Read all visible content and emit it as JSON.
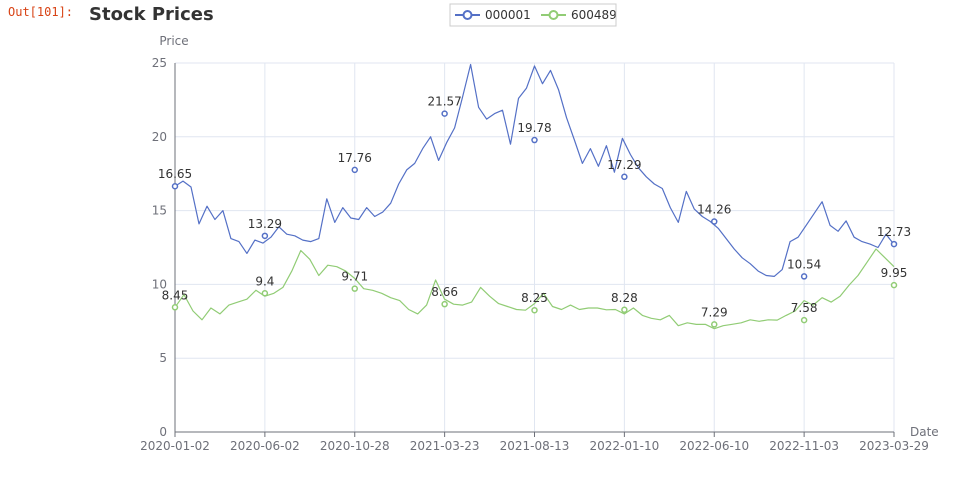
{
  "cell": {
    "prompt": "Out[101]:"
  },
  "chart_data": {
    "type": "line",
    "title": "Stock Prices",
    "xlabel": "Date",
    "ylabel": "Price",
    "ylim": [
      0,
      25
    ],
    "yticks": [
      0,
      5,
      10,
      15,
      20,
      25
    ],
    "x_tick_labels": [
      "2020-01-02",
      "2020-06-02",
      "2020-10-28",
      "2021-03-23",
      "2021-08-13",
      "2022-01-10",
      "2022-06-10",
      "2022-11-03",
      "2023-03-29"
    ],
    "grid": true,
    "legend_position": "top-center",
    "series": [
      {
        "name": "000001",
        "color": "#5470c6",
        "values": [
          16.65,
          17.0,
          16.6,
          14.1,
          15.3,
          14.4,
          15.0,
          13.1,
          12.9,
          12.1,
          13.0,
          12.8,
          13.2,
          13.9,
          13.4,
          13.29,
          13.0,
          12.9,
          13.1,
          15.8,
          14.2,
          15.2,
          14.5,
          14.4,
          15.2,
          14.6,
          14.9,
          15.5,
          16.8,
          17.76,
          18.2,
          19.2,
          20.0,
          18.4,
          19.6,
          20.6,
          22.7,
          24.9,
          22.0,
          21.2,
          21.57,
          21.8,
          19.5,
          22.6,
          23.3,
          24.8,
          23.6,
          24.5,
          23.2,
          21.3,
          19.78,
          18.2,
          19.2,
          18.0,
          19.4,
          17.6,
          19.9,
          18.8,
          17.9,
          17.29,
          16.8,
          16.5,
          15.2,
          14.2,
          16.3,
          15.1,
          14.6,
          14.26,
          13.8,
          13.1,
          12.4,
          11.8,
          11.4,
          10.9,
          10.6,
          10.54,
          11.0,
          12.9,
          13.2,
          14.0,
          14.8,
          15.6,
          14.0,
          13.6,
          14.3,
          13.2,
          12.9,
          12.73,
          12.5,
          13.4,
          12.7
        ]
      },
      {
        "name": "600489",
        "color": "#91cc75",
        "values": [
          8.45,
          9.3,
          8.2,
          7.6,
          8.4,
          8.0,
          8.6,
          8.8,
          9.0,
          9.6,
          9.2,
          9.4,
          9.8,
          10.9,
          12.3,
          11.7,
          10.6,
          11.3,
          11.2,
          10.9,
          10.4,
          9.71,
          9.6,
          9.4,
          9.1,
          8.9,
          8.3,
          8.0,
          8.6,
          10.3,
          9.0,
          8.66,
          8.6,
          8.8,
          9.8,
          9.2,
          8.7,
          8.5,
          8.3,
          8.25,
          8.7,
          9.4,
          8.5,
          8.3,
          8.6,
          8.3,
          8.4,
          8.4,
          8.28,
          8.3,
          8.0,
          8.4,
          7.9,
          7.7,
          7.6,
          7.9,
          7.2,
          7.4,
          7.29,
          7.3,
          7.0,
          7.2,
          7.3,
          7.4,
          7.6,
          7.5,
          7.6,
          7.58,
          7.9,
          8.2,
          8.9,
          8.6,
          9.1,
          8.8,
          9.2,
          9.95,
          10.6,
          11.5,
          12.4,
          11.8,
          11.2
        ]
      }
    ],
    "data_labels": {
      "000001": [
        16.65,
        13.29,
        17.76,
        21.57,
        19.78,
        17.29,
        14.26,
        10.54,
        12.73
      ],
      "600489": [
        8.45,
        9.4,
        9.71,
        8.66,
        8.25,
        8.28,
        7.29,
        7.58,
        9.95
      ]
    }
  }
}
